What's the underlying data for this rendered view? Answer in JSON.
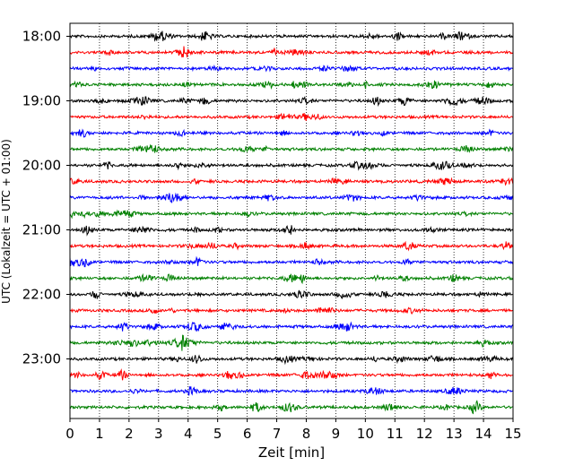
{
  "chart_data": {
    "type": "line",
    "title": "",
    "xlabel": "Zeit  [min]",
    "ylabel": "UTC (Lokalzeit = UTC + 01:00)",
    "xlim": [
      0,
      15
    ],
    "xticks": [
      0,
      1,
      2,
      3,
      4,
      5,
      6,
      7,
      8,
      9,
      10,
      11,
      12,
      13,
      14,
      15
    ],
    "y_tick_labels": [
      "18:00",
      "19:00",
      "20:00",
      "21:00",
      "22:00",
      "23:00"
    ],
    "y_tick_rows": [
      0,
      4,
      8,
      12,
      16,
      20
    ],
    "row_count": 24,
    "trace_colors": [
      "#000000",
      "#ff0000",
      "#0000ff",
      "#008000"
    ],
    "grid": "vertical dotted",
    "legend": "none"
  }
}
